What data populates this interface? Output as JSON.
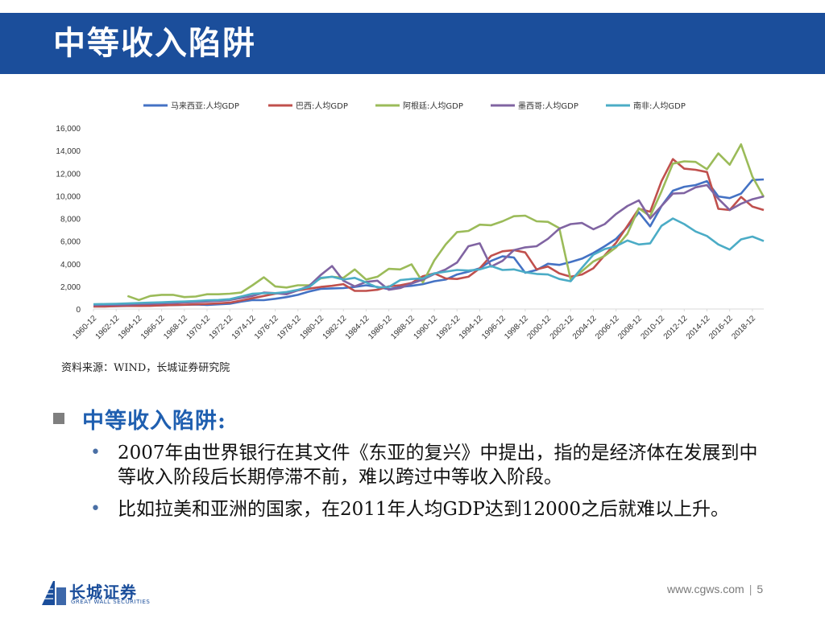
{
  "header": {
    "title": "中等收入陷阱"
  },
  "source_note": "资料来源：WIND，长城证券研究院",
  "section": {
    "heading": "中等收入陷阱:",
    "bullets": [
      "2007年由世界银行在其文件《东亚的复兴》中提出，指的是经济体在发展到中等收入阶段后长期停滞不前，难以跨过中等收入阶段。",
      "比如拉美和亚洲的国家，在2011年人均GDP达到12000之后就难以上升。"
    ]
  },
  "footer": {
    "logo_cn": "长城证券",
    "logo_en": "GREAT WALL SECURITIES",
    "url": "www.cgws.com",
    "separator": "|",
    "page": "5"
  },
  "colors": {
    "title_bar": "#1b4e9b",
    "heading": "#1f5fb0",
    "malaysia": "#4472c4",
    "brazil": "#c0504d",
    "argentina": "#9bbb59",
    "mexico": "#8064a2",
    "south_africa": "#4bacc6"
  },
  "chart_data": {
    "type": "line",
    "title": "",
    "xlabel": "",
    "ylabel": "",
    "x": [
      1960,
      1961,
      1962,
      1963,
      1964,
      1965,
      1966,
      1967,
      1968,
      1969,
      1970,
      1971,
      1972,
      1973,
      1974,
      1975,
      1976,
      1977,
      1978,
      1979,
      1980,
      1981,
      1982,
      1983,
      1984,
      1985,
      1986,
      1987,
      1988,
      1989,
      1990,
      1991,
      1992,
      1993,
      1994,
      1995,
      1996,
      1997,
      1998,
      1999,
      2000,
      2001,
      2002,
      2003,
      2004,
      2005,
      2006,
      2007,
      2008,
      2009,
      2010,
      2011,
      2012,
      2013,
      2014,
      2015,
      2016,
      2017,
      2018,
      2019
    ],
    "xticks": [
      "1960-12",
      "1962-12",
      "1964-12",
      "1966-12",
      "1968-12",
      "1970-12",
      "1972-12",
      "1974-12",
      "1976-12",
      "1978-12",
      "1980-12",
      "1982-12",
      "1984-12",
      "1986-12",
      "1988-12",
      "1990-12",
      "1992-12",
      "1994-12",
      "1996-12",
      "1998-12",
      "2000-12",
      "2002-12",
      "2004-12",
      "2006-12",
      "2008-12",
      "2010-12",
      "2012-12",
      "2014-12",
      "2016-12",
      "2018-12"
    ],
    "yticks": [
      "0",
      "2,000",
      "4,000",
      "6,000",
      "8,000",
      "10,000",
      "12,000",
      "14,000",
      "16,000"
    ],
    "ylim": [
      0,
      16000
    ],
    "legend_position": "top",
    "grid": false,
    "series": [
      {
        "name": "马来西亚:人均GDP",
        "color": "#4472c4",
        "values": [
          235,
          240,
          250,
          270,
          290,
          310,
          330,
          350,
          370,
          390,
          360,
          410,
          460,
          650,
          790,
          780,
          900,
          1050,
          1250,
          1550,
          1780,
          1820,
          1850,
          1950,
          2100,
          1950,
          1750,
          1950,
          2050,
          2200,
          2450,
          2600,
          3050,
          3300,
          3600,
          4250,
          4650,
          4550,
          3200,
          3450,
          4000,
          3900,
          4150,
          4450,
          4950,
          5550,
          6200,
          7250,
          8550,
          7300,
          9100,
          10450,
          10800,
          10950,
          11300,
          9950,
          9800,
          10200,
          11400,
          11450
        ]
      },
      {
        "name": "巴西:人均GDP",
        "color": "#c0504d",
        "values": [
          210,
          220,
          260,
          280,
          270,
          280,
          330,
          350,
          380,
          410,
          450,
          500,
          560,
          750,
          950,
          1150,
          1350,
          1450,
          1650,
          1800,
          1950,
          2050,
          2200,
          1600,
          1600,
          1700,
          2000,
          2100,
          2300,
          2900,
          3150,
          2700,
          2650,
          2850,
          3600,
          4700,
          5100,
          5200,
          5000,
          3500,
          3750,
          3150,
          2850,
          3050,
          3600,
          4750,
          5850,
          7350,
          8850,
          8600,
          11300,
          13250,
          12400,
          12300,
          12100,
          8850,
          8750,
          9900,
          9050,
          8750
        ]
      },
      {
        "name": "阿根廷:人均GDP",
        "color": "#9bbb59",
        "values": [
          null,
          null,
          null,
          1150,
          800,
          1150,
          1250,
          1250,
          1050,
          1100,
          1300,
          1300,
          1350,
          1450,
          2100,
          2800,
          2000,
          1900,
          2100,
          2100,
          2700,
          2850,
          2750,
          3500,
          2600,
          2850,
          3550,
          3500,
          3950,
          2350,
          4300,
          5700,
          6800,
          6900,
          7450,
          7400,
          7750,
          8200,
          8250,
          7750,
          7700,
          7150,
          2600,
          3350,
          4200,
          4700,
          5450,
          6650,
          8900,
          8200,
          10400,
          12850,
          13050,
          13000,
          12350,
          13750,
          12750,
          14550,
          11700,
          9900
        ]
      },
      {
        "name": "墨西哥:人均GDP",
        "color": "#8064a2",
        "values": [
          340,
          360,
          380,
          400,
          430,
          470,
          510,
          540,
          580,
          620,
          670,
          720,
          790,
          980,
          1150,
          1450,
          1400,
          1300,
          1650,
          2050,
          3000,
          3800,
          2500,
          2000,
          2400,
          2500,
          1700,
          1850,
          2250,
          2600,
          3100,
          3500,
          4100,
          5550,
          5800,
          3750,
          4250,
          5200,
          5450,
          5550,
          6200,
          7100,
          7500,
          7600,
          7050,
          7500,
          8400,
          9100,
          9600,
          8000,
          9100,
          10200,
          10250,
          10750,
          10950,
          9750,
          8750,
          9300,
          9700,
          9950
        ]
      },
      {
        "name": "南非:人均GDP",
        "color": "#4bacc6",
        "values": [
          420,
          440,
          460,
          490,
          530,
          560,
          590,
          630,
          660,
          710,
          770,
          800,
          870,
          1100,
          1350,
          1400,
          1400,
          1500,
          1700,
          1950,
          2750,
          2850,
          2600,
          2750,
          2350,
          1900,
          1950,
          2550,
          2650,
          2700,
          3150,
          3300,
          3450,
          3400,
          3500,
          3800,
          3450,
          3500,
          3250,
          3100,
          3050,
          2650,
          2450,
          3650,
          4800,
          5300,
          5550,
          6050,
          5700,
          5800,
          7350,
          8000,
          7500,
          6850,
          6450,
          5700,
          5250,
          6150,
          6400,
          6000
        ]
      }
    ]
  }
}
